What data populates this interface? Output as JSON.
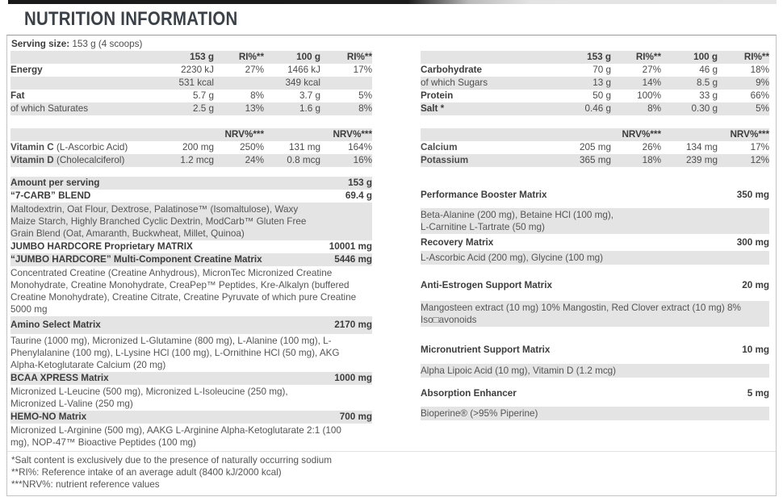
{
  "title": "NUTRITION INFORMATION",
  "serving": {
    "label": "Serving size:",
    "value": "153 g (4 scoops)"
  },
  "cols": {
    "c1": "153 g",
    "c2": "RI%**",
    "c3": "100 g",
    "c4": "RI%**",
    "nrv": "NRV%***"
  },
  "macros_left": {
    "rows": [
      {
        "label": "Energy",
        "v1": "2230 kJ",
        "v2": "27%",
        "v3": "1466 kJ",
        "v4": "17%"
      },
      {
        "label": "",
        "v1": "531 kcal",
        "v2": "",
        "v3": "349 kcal",
        "v4": ""
      },
      {
        "label": "Fat",
        "v1": "5.7 g",
        "v2": "8%",
        "v3": "3.7 g",
        "v4": "5%"
      },
      {
        "label": "of which Saturates",
        "v1": "2.5 g",
        "v2": "13%",
        "v3": "1.6 g",
        "v4": "8%"
      }
    ]
  },
  "macros_right": {
    "rows": [
      {
        "label": "Carbohydrate",
        "v1": "70 g",
        "v2": "27%",
        "v3": "46 g",
        "v4": "18%"
      },
      {
        "label": "of which Sugars",
        "v1": "13 g",
        "v2": "14%",
        "v3": "8.5 g",
        "v4": "9%"
      },
      {
        "label": "Protein",
        "v1": "50 g",
        "v2": "100%",
        "v3": "33 g",
        "v4": "66%"
      },
      {
        "label": "Salt *",
        "v1": "0.46 g",
        "v2": "8%",
        "v3": "0.30 g",
        "v4": "5%"
      }
    ]
  },
  "micros_left": {
    "rows": [
      {
        "name": "Vitamin C",
        "detail": "(L-Ascorbic Acid)",
        "v1": "200 mg",
        "v2": "250%",
        "v3": "131 mg",
        "v4": "164%"
      },
      {
        "name": "Vitamin D",
        "detail": "(Cholecalciferol)",
        "v1": "1.2 mcg",
        "v2": "24%",
        "v3": "0.8 mcg",
        "v4": "16%"
      }
    ]
  },
  "micros_right": {
    "rows": [
      {
        "name": "Calcium",
        "detail": "",
        "v1": "205 mg",
        "v2": "26%",
        "v3": "134 mg",
        "v4": "17%"
      },
      {
        "name": "Potassium",
        "detail": "",
        "v1": "365 mg",
        "v2": "18%",
        "v3": "239 mg",
        "v4": "12%"
      }
    ]
  },
  "matrix_left": {
    "r0": {
      "name": "Amount per serving",
      "amount": "153 g"
    },
    "r1": {
      "name": "“7-CARB” BLEND",
      "amount": "69.4 g"
    },
    "r2": {
      "desc": "Maltodextrin, Oat Flour, Dextrose, Palatinose™ (Isomaltulose), Waxy\nMaize Starch, Highly Branched Cyclic Dextrin, ModCarb™ Gluten Free\nGrain Blend (Oat, Amaranth, Buckwheat, Millet, Quinoa)"
    },
    "r3": {
      "name": "JUMBO HARDCORE Proprietary MATRIX",
      "amount": "10001 mg"
    },
    "r4": {
      "name": "“JUMBO HARDCORE” Multi-Component Creatine Matrix",
      "amount": "5446 mg"
    },
    "r5": {
      "desc": "Concentrated Creatine (Creatine Anhydrous), MicronTec Micronized Creatine\nMonohydrate, Creatine Monohydrate, CreaPep™ Peptides, Kre-Alkalyn (buffered\nCreatine Monohydrate), Creatine Citrate, Creatine Pyruvate of which pure Creatine\n5000 mg"
    },
    "r6": {
      "name": "Amino Select Matrix",
      "amount": "2170 mg"
    },
    "r7": {
      "desc": "Taurine (1000 mg), Micronized L-Glutamine (800 mg), L-Alanine (100 mg), L-\nPhenylalanine (100 mg), L-Lysine HCl (100 mg), L-Ornithine HCl (50 mg), AKG\nAlpha-Ketoglutarate Calcium (20 mg)"
    },
    "r8": {
      "name": "BCAA XPRESS Matrix",
      "amount": "1000 mg"
    },
    "r9": {
      "desc": "Micronized L-Leucine (500 mg), Micronized L-Isoleucine (250 mg),\nMicronized L-Valine (250 mg)"
    },
    "r10": {
      "name": "HEMO-NO Matrix",
      "amount": "700 mg"
    },
    "r11": {
      "desc": "Micronized L-Arginine (500 mg), AAKG L-Arginine Alpha-Ketoglutarate 2:1 (100\nmg), NOP-47™ Bioactive Peptides (100 mg)"
    }
  },
  "matrix_right": {
    "r0": {
      "name": "Performance Booster Matrix",
      "amount": "350 mg"
    },
    "r1": {
      "desc": "Beta-Alanine (200 mg), Betaine HCl (100 mg),\nL-Carnitine L-Tartrate (50 mg)"
    },
    "r2": {
      "name": "Recovery Matrix",
      "amount": "300 mg"
    },
    "r3": {
      "desc": "L-Ascorbic Acid (200 mg), Glycine (100 mg)"
    },
    "r4": {
      "name": "Anti-Estrogen Support Matrix",
      "amount": "20 mg"
    },
    "r5": {
      "desc": "Mangosteen extract (10 mg) 10% Mangostin, Red Clover extract (10 mg) 8%\nIso□avonoids"
    },
    "r6": {
      "name": "Micronutrient Support Matrix",
      "amount": "10 mg"
    },
    "r7": {
      "desc": "Alpha Lipoic Acid (10 mg), Vitamin D (1.2 mcg)"
    },
    "r8": {
      "name": "Absorption Enhancer",
      "amount": "5 mg"
    },
    "r9": {
      "desc": "Bioperine® (>95% Piperine)"
    }
  },
  "footnotes": {
    "l1": "*Salt content is exclusively due to the presence of naturally occurring sodium",
    "l2": "**RI%: Reference intake of an average adult (8400 kJ/2000 kcal)",
    "l3": "***NRV%: nutrient reference values"
  }
}
